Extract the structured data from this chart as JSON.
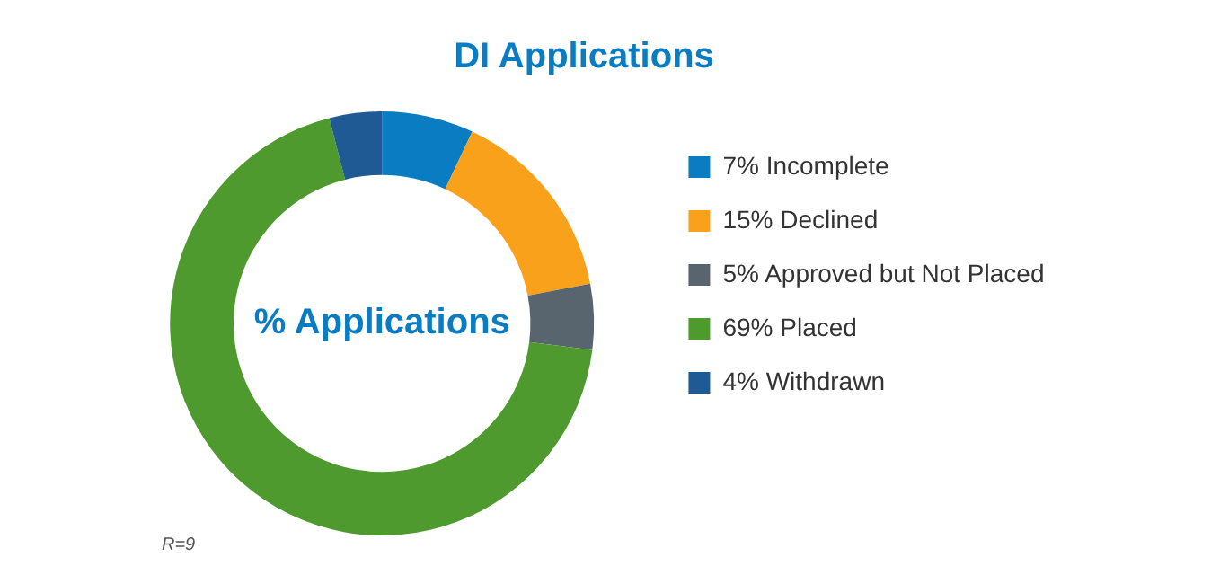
{
  "chart_data": {
    "type": "donut",
    "title": "DI Applications",
    "categories": [
      "7% Incomplete",
      "15% Declined",
      "5% Approved but Not Placed",
      "69% Placed",
      "4% Withdrawn"
    ],
    "values": [
      7,
      15,
      5,
      69,
      4
    ],
    "colors": [
      "#0a7dc2",
      "#f9a11b",
      "#58646e",
      "#4e9a2f",
      "#1f5a94"
    ],
    "legend": "right",
    "annotations": [
      "% Applications",
      "R=9"
    ]
  }
}
